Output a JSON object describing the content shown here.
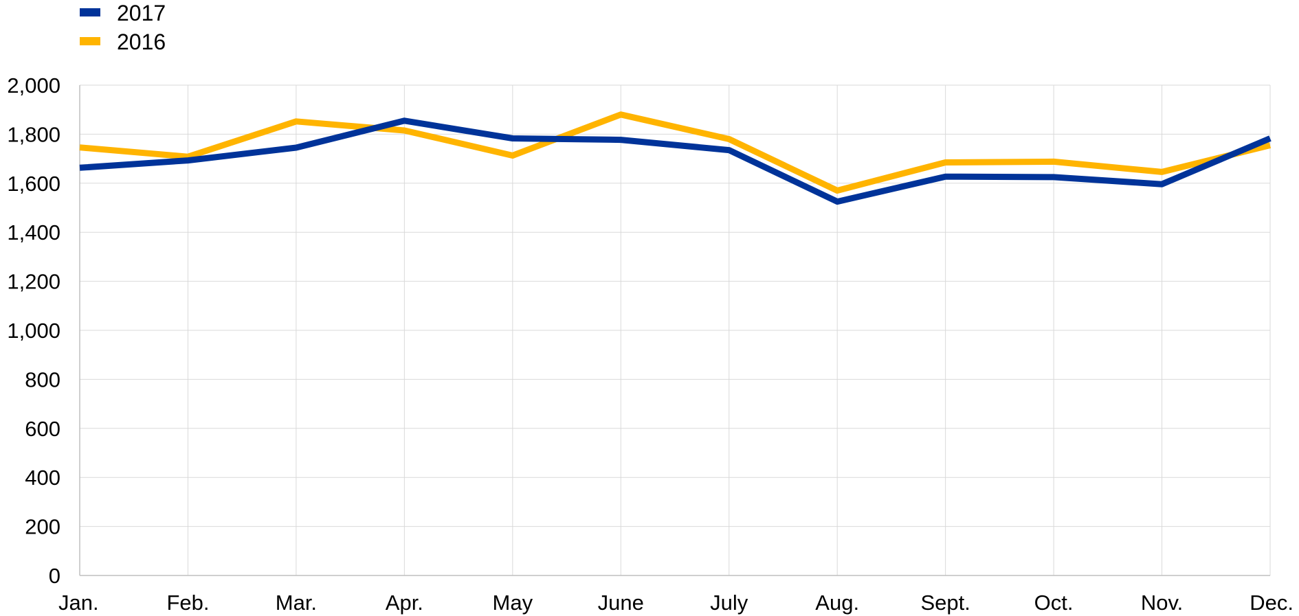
{
  "chart_data": {
    "type": "line",
    "categories": [
      "Jan.",
      "Feb.",
      "Mar.",
      "Apr.",
      "May",
      "June",
      "July",
      "Aug.",
      "Sept.",
      "Oct.",
      "Nov.",
      "Dec."
    ],
    "series": [
      {
        "name": "2017",
        "color": "#003399",
        "values": [
          1663,
          1693,
          1745,
          1855,
          1783,
          1777,
          1735,
          1525,
          1627,
          1625,
          1596,
          1783
        ]
      },
      {
        "name": "2016",
        "color": "#FFB400",
        "values": [
          1746,
          1708,
          1852,
          1815,
          1713,
          1880,
          1780,
          1570,
          1685,
          1688,
          1646,
          1755
        ]
      }
    ],
    "yticks": [
      "0",
      "200",
      "400",
      "600",
      "800",
      "1,000",
      "1,200",
      "1,400",
      "1,600",
      "1,800",
      "2,000"
    ],
    "ylim": [
      0,
      2000
    ],
    "grid": true,
    "legend_position": "top-left"
  }
}
